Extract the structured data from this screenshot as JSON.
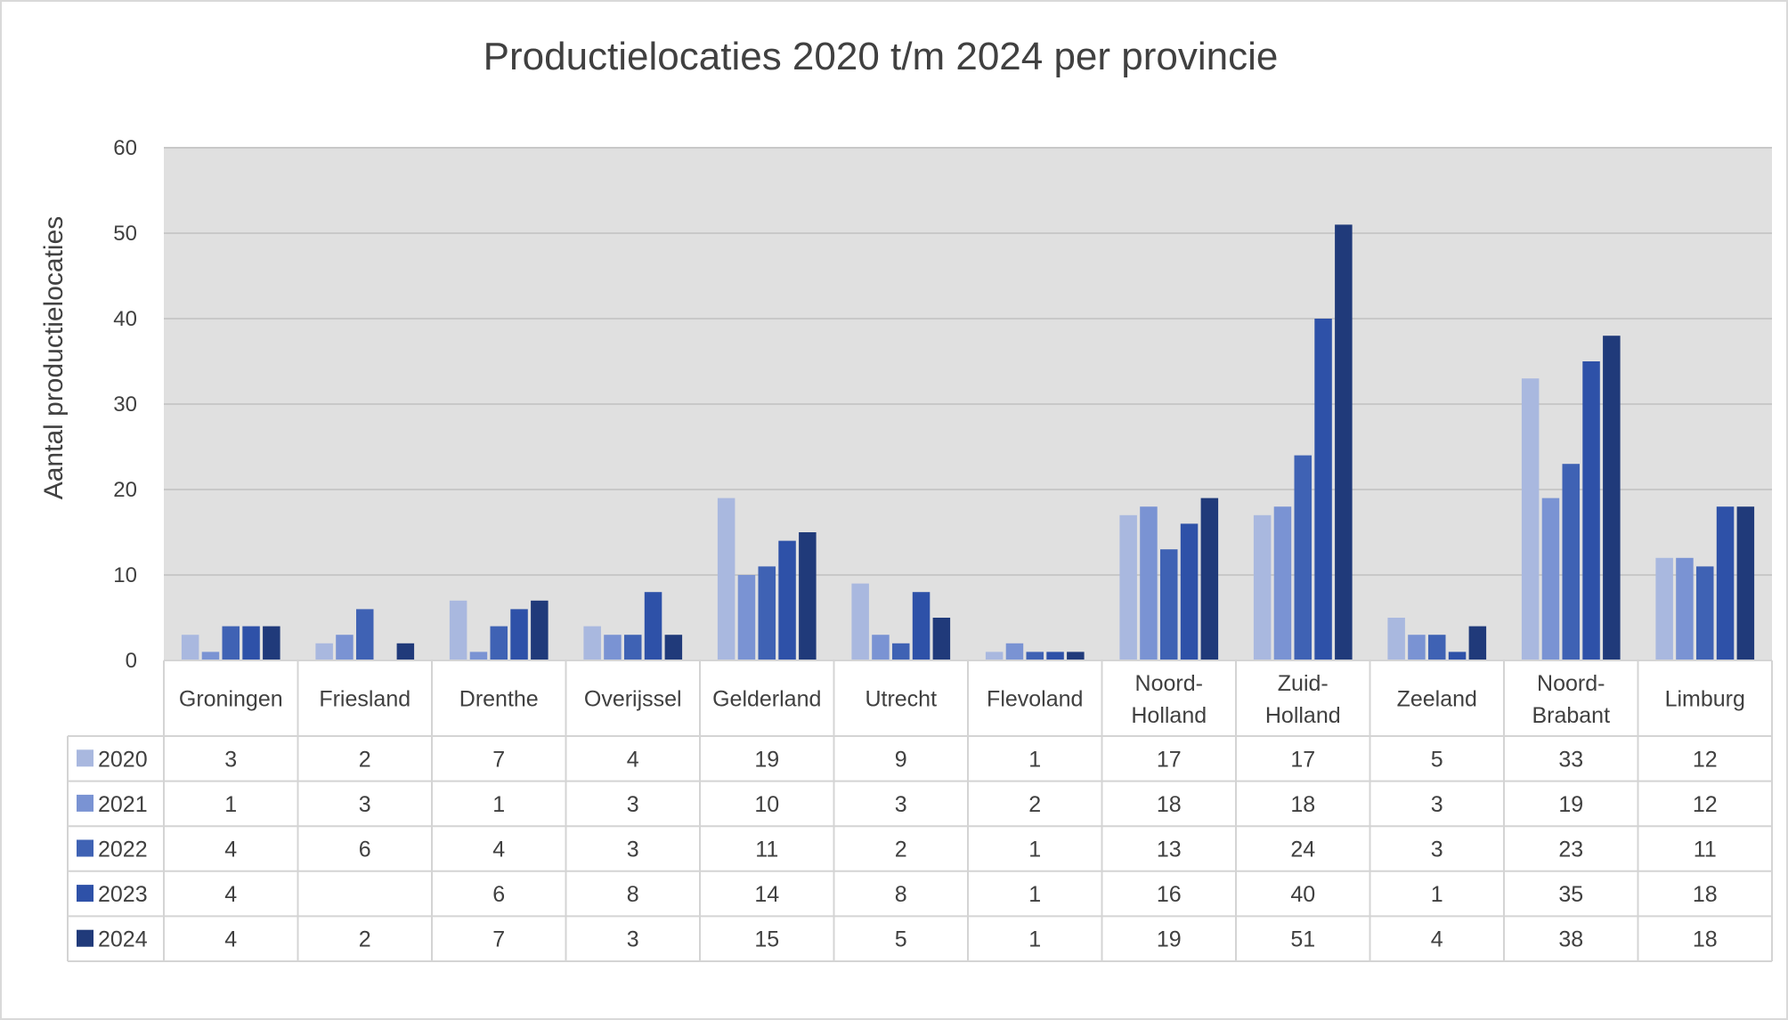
{
  "chart_data": {
    "type": "bar",
    "title": "Productielocaties 2020 t/m 2024 per provincie",
    "xlabel": "",
    "ylabel": "Aantal productielocaties",
    "ylim": [
      0,
      60
    ],
    "yticks": [
      0,
      10,
      20,
      30,
      40,
      50,
      60
    ],
    "grid": true,
    "legend": "data-table-left",
    "categories": [
      "Groningen",
      "Friesland",
      "Drenthe",
      "Overijssel",
      "Gelderland",
      "Utrecht",
      "Flevoland",
      "Noord-Holland",
      "Zuid-Holland",
      "Zeeland",
      "Noord-Brabant",
      "Limburg"
    ],
    "series": [
      {
        "name": "2020",
        "color": "#a9b8df",
        "values": [
          3,
          2,
          7,
          4,
          19,
          9,
          1,
          17,
          17,
          5,
          33,
          12
        ]
      },
      {
        "name": "2021",
        "color": "#7a93d3",
        "values": [
          1,
          3,
          1,
          3,
          10,
          3,
          2,
          18,
          18,
          3,
          19,
          12
        ]
      },
      {
        "name": "2022",
        "color": "#3f62b4",
        "values": [
          4,
          6,
          4,
          3,
          11,
          2,
          1,
          13,
          24,
          3,
          23,
          11
        ]
      },
      {
        "name": "2023",
        "color": "#2e51a8",
        "values": [
          4,
          null,
          6,
          8,
          14,
          8,
          1,
          16,
          40,
          1,
          35,
          18
        ]
      },
      {
        "name": "2024",
        "color": "#203a7a",
        "values": [
          4,
          2,
          7,
          3,
          15,
          5,
          1,
          19,
          51,
          4,
          38,
          18
        ]
      }
    ]
  }
}
